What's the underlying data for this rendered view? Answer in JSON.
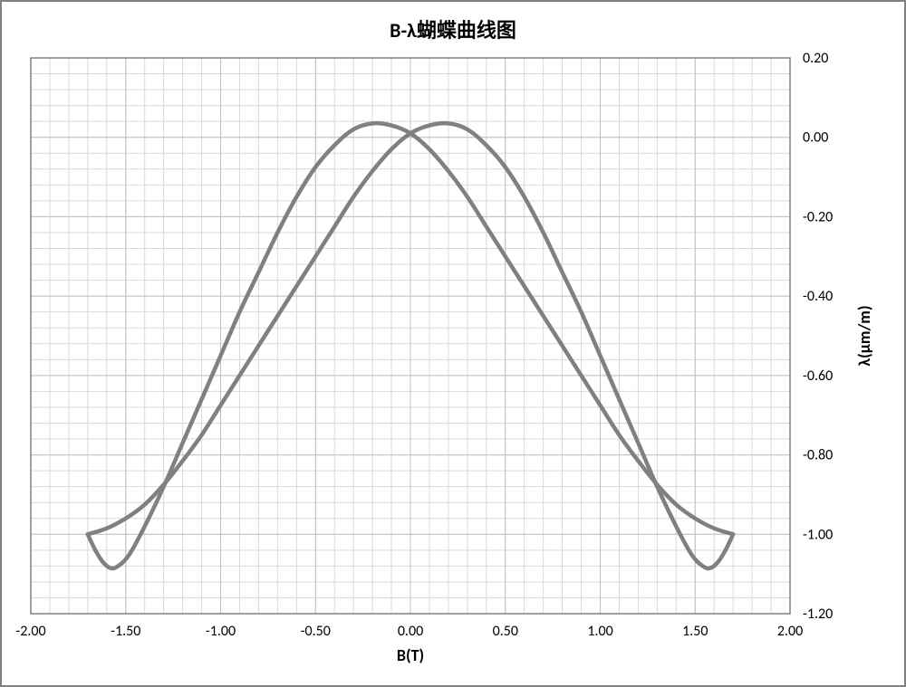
{
  "chart": {
    "type": "line",
    "title": "B-λ蝴蝶曲线图",
    "title_fontsize": 22,
    "xlabel": "B(T)",
    "ylabel": "λ(μm/m)",
    "label_fontsize": 18,
    "tick_fontsize": 16,
    "xlim": [
      -2.0,
      2.0
    ],
    "ylim": [
      -1.2,
      0.2
    ],
    "xtick_step": 0.5,
    "ytick_step": 0.2,
    "x_minor_per_major": 5,
    "y_minor_per_major": 5,
    "xtick_format": "fixed2",
    "ytick_format": "fixed2",
    "xtick_labels": [
      "-2.00",
      "-1.50",
      "-1.00",
      "-0.50",
      "0.00",
      "0.50",
      "1.00",
      "1.50",
      "2.00"
    ],
    "ytick_labels": [
      "0.20",
      "0.00",
      "-0.20",
      "-0.40",
      "-0.60",
      "-0.80",
      "-1.00",
      "-1.20"
    ],
    "background_color": "#ffffff",
    "plot_border_color": "#808080",
    "outer_border_color": "#808080",
    "major_grid_color": "#bfbfbf",
    "minor_grid_color": "#d9d9d9",
    "line_color": "#808080",
    "line_width": 4.5,
    "y_axis_side": "right",
    "series": [
      {
        "name": "descending",
        "color": "#808080",
        "points": [
          [
            1.7,
            -1.0
          ],
          [
            1.66,
            -1.04
          ],
          [
            1.62,
            -1.07
          ],
          [
            1.58,
            -1.085
          ],
          [
            1.54,
            -1.08
          ],
          [
            1.48,
            -1.05
          ],
          [
            1.4,
            -0.98
          ],
          [
            1.3,
            -0.88
          ],
          [
            1.2,
            -0.77
          ],
          [
            1.1,
            -0.66
          ],
          [
            1.0,
            -0.55
          ],
          [
            0.9,
            -0.44
          ],
          [
            0.8,
            -0.34
          ],
          [
            0.7,
            -0.24
          ],
          [
            0.6,
            -0.15
          ],
          [
            0.5,
            -0.075
          ],
          [
            0.4,
            -0.02
          ],
          [
            0.3,
            0.02
          ],
          [
            0.2,
            0.035
          ],
          [
            0.1,
            0.03
          ],
          [
            0.0,
            0.01
          ],
          [
            -0.1,
            -0.03
          ],
          [
            -0.2,
            -0.085
          ],
          [
            -0.3,
            -0.15
          ],
          [
            -0.4,
            -0.225
          ],
          [
            -0.5,
            -0.3
          ],
          [
            -0.6,
            -0.375
          ],
          [
            -0.7,
            -0.45
          ],
          [
            -0.8,
            -0.525
          ],
          [
            -0.9,
            -0.6
          ],
          [
            -1.0,
            -0.675
          ],
          [
            -1.1,
            -0.75
          ],
          [
            -1.2,
            -0.815
          ],
          [
            -1.3,
            -0.875
          ],
          [
            -1.4,
            -0.925
          ],
          [
            -1.5,
            -0.96
          ],
          [
            -1.6,
            -0.985
          ],
          [
            -1.7,
            -1.0
          ]
        ]
      },
      {
        "name": "ascending",
        "color": "#808080",
        "points": [
          [
            -1.7,
            -1.0
          ],
          [
            -1.66,
            -1.04
          ],
          [
            -1.62,
            -1.07
          ],
          [
            -1.58,
            -1.085
          ],
          [
            -1.54,
            -1.08
          ],
          [
            -1.48,
            -1.05
          ],
          [
            -1.4,
            -0.98
          ],
          [
            -1.3,
            -0.88
          ],
          [
            -1.2,
            -0.77
          ],
          [
            -1.1,
            -0.66
          ],
          [
            -1.0,
            -0.55
          ],
          [
            -0.9,
            -0.44
          ],
          [
            -0.8,
            -0.34
          ],
          [
            -0.7,
            -0.24
          ],
          [
            -0.6,
            -0.15
          ],
          [
            -0.5,
            -0.075
          ],
          [
            -0.4,
            -0.02
          ],
          [
            -0.3,
            0.02
          ],
          [
            -0.2,
            0.035
          ],
          [
            -0.1,
            0.03
          ],
          [
            0.0,
            0.01
          ],
          [
            0.1,
            -0.03
          ],
          [
            0.2,
            -0.085
          ],
          [
            0.3,
            -0.15
          ],
          [
            0.4,
            -0.225
          ],
          [
            0.5,
            -0.3
          ],
          [
            0.6,
            -0.375
          ],
          [
            0.7,
            -0.45
          ],
          [
            0.8,
            -0.525
          ],
          [
            0.9,
            -0.6
          ],
          [
            1.0,
            -0.675
          ],
          [
            1.1,
            -0.75
          ],
          [
            1.2,
            -0.815
          ],
          [
            1.3,
            -0.875
          ],
          [
            1.4,
            -0.925
          ],
          [
            1.5,
            -0.96
          ],
          [
            1.6,
            -0.985
          ],
          [
            1.7,
            -1.0
          ]
        ]
      }
    ]
  }
}
